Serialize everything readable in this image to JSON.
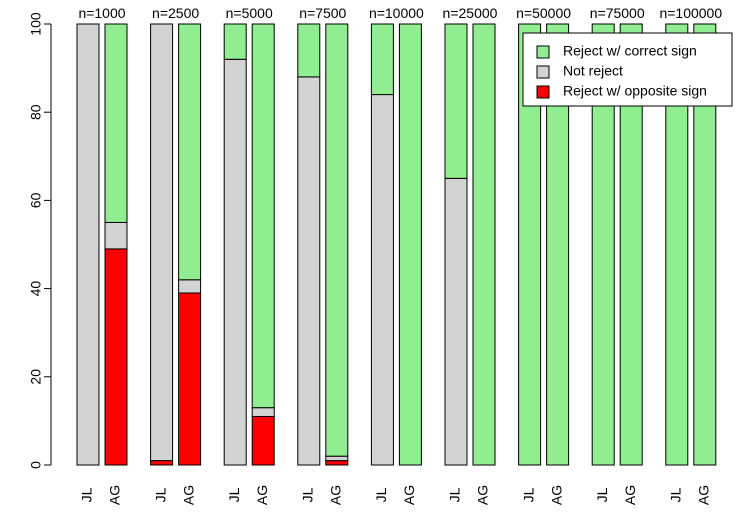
{
  "chart_data": {
    "type": "bar",
    "stacked": true,
    "ylim": [
      0,
      100
    ],
    "yticks": [
      0,
      20,
      40,
      60,
      80,
      100
    ],
    "groups": [
      "n=1000",
      "n=2500",
      "n=5000",
      "n=7500",
      "n=10000",
      "n=25000",
      "n=50000",
      "n=75000",
      "n=100000"
    ],
    "bar_labels": [
      "JL",
      "AG"
    ],
    "series": [
      {
        "name": "Reject w/ opposite sign",
        "color": "#ff0000",
        "values": [
          [
            0,
            49
          ],
          [
            1,
            39
          ],
          [
            0,
            11
          ],
          [
            0,
            1
          ],
          [
            0,
            0
          ],
          [
            0,
            0
          ],
          [
            0,
            0
          ],
          [
            0,
            0
          ],
          [
            0,
            0
          ]
        ]
      },
      {
        "name": "Not reject",
        "color": "#d3d3d3",
        "values": [
          [
            100,
            6
          ],
          [
            99,
            3
          ],
          [
            92,
            2
          ],
          [
            88,
            1
          ],
          [
            84,
            0
          ],
          [
            65,
            0
          ],
          [
            0,
            0
          ],
          [
            0,
            0
          ],
          [
            0,
            0
          ]
        ]
      },
      {
        "name": "Reject w/ correct sign",
        "color": "#90ee90",
        "values": [
          [
            0,
            45
          ],
          [
            0,
            58
          ],
          [
            8,
            87
          ],
          [
            12,
            98
          ],
          [
            16,
            100
          ],
          [
            35,
            100
          ],
          [
            100,
            100
          ],
          [
            100,
            100
          ],
          [
            100,
            100
          ]
        ]
      }
    ],
    "legend": {
      "position": "top-right",
      "entries": [
        "Reject w/ correct sign",
        "Not reject",
        "Reject w/ opposite sign"
      ]
    },
    "grid": false
  }
}
